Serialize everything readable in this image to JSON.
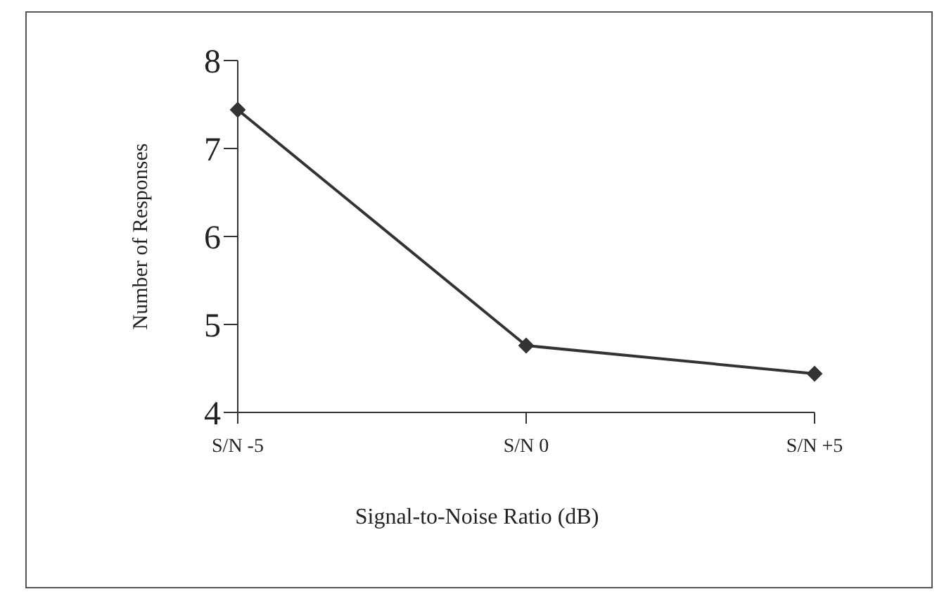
{
  "chart_data": {
    "type": "line",
    "xlabel": "Signal-to-Noise Ratio (dB)",
    "ylabel": "Number of Responses",
    "categories": [
      "S/N -5",
      "S/N 0",
      "S/N +5"
    ],
    "series": [
      {
        "color": "#333333",
        "values": [
          7.44,
          4.76,
          4.44
        ]
      }
    ],
    "ylim": [
      4,
      8
    ],
    "yticks": [
      4,
      5,
      6,
      7,
      8
    ],
    "legend": false,
    "marker": "diamond",
    "line_style": "solid"
  }
}
